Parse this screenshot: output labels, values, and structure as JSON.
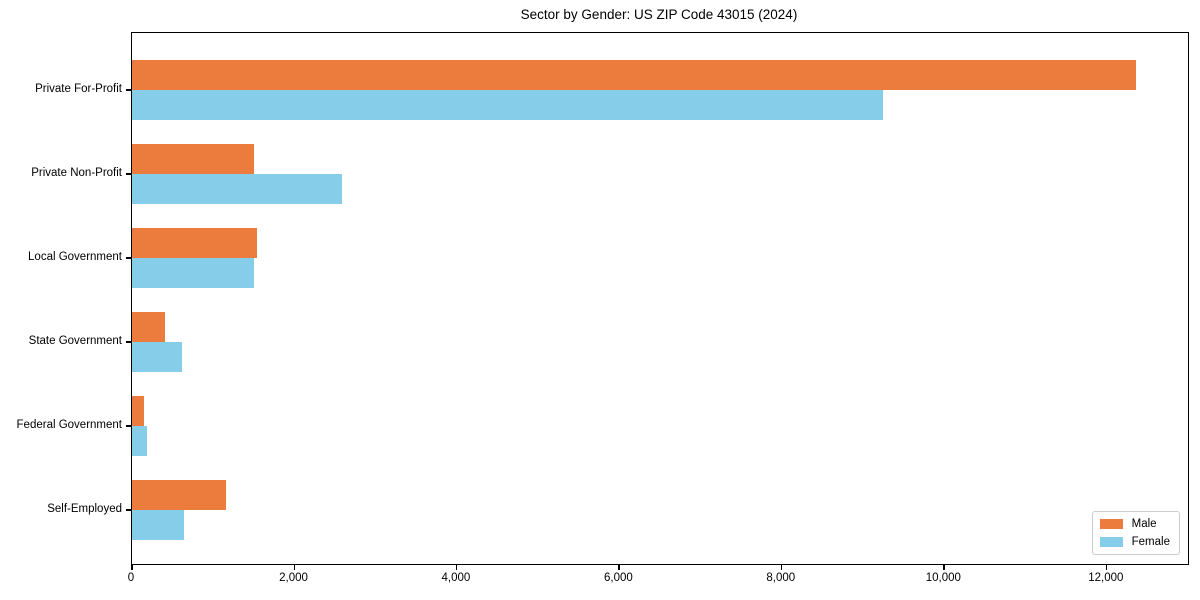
{
  "chart_data": {
    "type": "bar",
    "orientation": "horizontal",
    "title": "Sector by Gender: US ZIP Code 43015 (2024)",
    "categories": [
      "Private For-Profit",
      "Private Non-Profit",
      "Local Government",
      "State Government",
      "Federal Government",
      "Self-Employed"
    ],
    "series": [
      {
        "name": "Male",
        "color": "#ec7c3d",
        "values": [
          12360,
          1500,
          1540,
          400,
          150,
          1160
        ]
      },
      {
        "name": "Female",
        "color": "#85cde8",
        "values": [
          9250,
          2580,
          1500,
          620,
          185,
          645
        ]
      }
    ],
    "xlabel": "",
    "ylabel": "",
    "xlim": [
      0,
      13000
    ],
    "xticks": [
      {
        "value": 0,
        "label": "0"
      },
      {
        "value": 2000,
        "label": "2,000"
      },
      {
        "value": 4000,
        "label": "4,000"
      },
      {
        "value": 6000,
        "label": "6,000"
      },
      {
        "value": 8000,
        "label": "8,000"
      },
      {
        "value": 10000,
        "label": "10,000"
      },
      {
        "value": 12000,
        "label": "12,000"
      }
    ],
    "grid": false,
    "legend": {
      "position": "lower right",
      "entries": [
        "Male",
        "Female"
      ]
    },
    "colors": {
      "male": "#ec7c3d",
      "female": "#85cde8",
      "spine": "#000000",
      "text": "#000000",
      "legend_border": "#cccccc"
    }
  }
}
